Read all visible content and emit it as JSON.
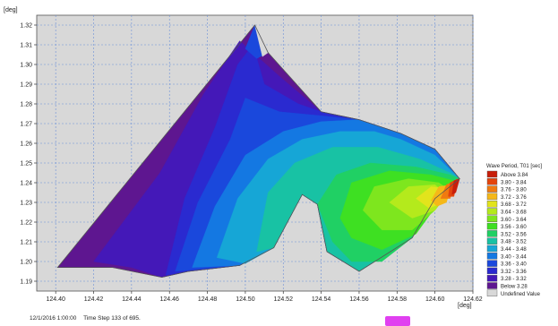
{
  "chart_data": {
    "type": "contour",
    "x_unit_label": "[deg]",
    "y_unit_label": "[deg]",
    "xlim": [
      124.39,
      124.62
    ],
    "ylim": [
      1.185,
      1.325
    ],
    "x_ticks": [
      "124.40",
      "124.42",
      "124.44",
      "124.46",
      "124.48",
      "124.50",
      "124.52",
      "124.54",
      "124.56",
      "124.58",
      "124.60",
      "124.62"
    ],
    "y_ticks": [
      "1.19",
      "1.20",
      "1.21",
      "1.22",
      "1.23",
      "1.24",
      "1.25",
      "1.26",
      "1.27",
      "1.28",
      "1.29",
      "1.30",
      "1.31",
      "1.32"
    ],
    "grid": true,
    "legend_position": "right",
    "legend": {
      "title": "Wave Period, T01 [sec]",
      "entries": [
        {
          "label": "Above 3.84",
          "color": "#c81e0a"
        },
        {
          "label": "3.80 - 3.84",
          "color": "#e4440c"
        },
        {
          "label": "3.76 - 3.80",
          "color": "#f07a10"
        },
        {
          "label": "3.72 - 3.76",
          "color": "#f5b818"
        },
        {
          "label": "3.68 - 3.72",
          "color": "#e2e41c"
        },
        {
          "label": "3.64 - 3.68",
          "color": "#b4ea1c"
        },
        {
          "label": "3.60 - 3.64",
          "color": "#7ee61e"
        },
        {
          "label": "3.56 - 3.60",
          "color": "#3ee022"
        },
        {
          "label": "3.52 - 3.56",
          "color": "#20d064"
        },
        {
          "label": "3.48 - 3.52",
          "color": "#18c2a4"
        },
        {
          "label": "3.44 - 3.48",
          "color": "#16a6d6"
        },
        {
          "label": "3.40 - 3.44",
          "color": "#1478e2"
        },
        {
          "label": "3.36 - 3.40",
          "color": "#1a48dc"
        },
        {
          "label": "3.32 - 3.36",
          "color": "#2a2ad0"
        },
        {
          "label": "3.28 - 3.32",
          "color": "#4418b8"
        },
        {
          "label": "Below 3.28",
          "color": "#5e1690"
        },
        {
          "label": "Undefined Value",
          "color": "#d8d8d8"
        }
      ]
    },
    "domain_outline": [
      [
        124.401,
        1.197
      ],
      [
        124.505,
        1.32
      ],
      [
        124.512,
        1.306
      ],
      [
        124.54,
        1.276
      ],
      [
        124.56,
        1.272
      ],
      [
        124.582,
        1.265
      ],
      [
        124.6,
        1.257
      ],
      [
        124.613,
        1.242
      ],
      [
        124.6,
        1.232
      ],
      [
        124.588,
        1.212
      ],
      [
        124.56,
        1.195
      ],
      [
        124.543,
        1.205
      ],
      [
        124.538,
        1.229
      ],
      [
        124.53,
        1.234
      ],
      [
        124.515,
        1.207
      ],
      [
        124.497,
        1.198
      ],
      [
        124.47,
        1.195
      ],
      [
        124.456,
        1.192
      ],
      [
        124.43,
        1.197
      ]
    ],
    "bands": [
      {
        "level": "Below 3.28",
        "region": [
          [
            124.401,
            1.197
          ],
          [
            124.505,
            1.32
          ],
          [
            124.512,
            1.306
          ],
          [
            124.54,
            1.276
          ],
          [
            124.56,
            1.272
          ],
          [
            124.582,
            1.265
          ],
          [
            124.6,
            1.257
          ],
          [
            124.613,
            1.242
          ],
          [
            124.6,
            1.232
          ],
          [
            124.588,
            1.212
          ],
          [
            124.56,
            1.195
          ],
          [
            124.543,
            1.205
          ],
          [
            124.538,
            1.229
          ],
          [
            124.53,
            1.234
          ],
          [
            124.515,
            1.207
          ],
          [
            124.497,
            1.198
          ],
          [
            124.47,
            1.195
          ],
          [
            124.456,
            1.192
          ],
          [
            124.43,
            1.197
          ]
        ]
      },
      {
        "level": "3.28 - 3.32",
        "region": [
          [
            124.42,
            1.2
          ],
          [
            124.455,
            1.245
          ],
          [
            124.478,
            1.285
          ],
          [
            124.497,
            1.312
          ],
          [
            124.518,
            1.294
          ],
          [
            124.54,
            1.276
          ],
          [
            124.56,
            1.272
          ],
          [
            124.582,
            1.265
          ],
          [
            124.6,
            1.257
          ],
          [
            124.613,
            1.242
          ],
          [
            124.6,
            1.232
          ],
          [
            124.588,
            1.212
          ],
          [
            124.56,
            1.195
          ],
          [
            124.543,
            1.205
          ],
          [
            124.538,
            1.229
          ],
          [
            124.53,
            1.234
          ],
          [
            124.515,
            1.207
          ],
          [
            124.497,
            1.198
          ],
          [
            124.47,
            1.195
          ],
          [
            124.456,
            1.192
          ],
          [
            124.44,
            1.197
          ]
        ]
      },
      {
        "level": "3.32 - 3.36",
        "region": [
          [
            124.458,
            1.193
          ],
          [
            124.468,
            1.232
          ],
          [
            124.484,
            1.268
          ],
          [
            124.496,
            1.3
          ],
          [
            124.504,
            1.31
          ],
          [
            124.51,
            1.29
          ],
          [
            124.528,
            1.28
          ],
          [
            124.54,
            1.276
          ],
          [
            124.56,
            1.272
          ],
          [
            124.582,
            1.265
          ],
          [
            124.6,
            1.257
          ],
          [
            124.613,
            1.242
          ],
          [
            124.6,
            1.232
          ],
          [
            124.588,
            1.212
          ],
          [
            124.56,
            1.195
          ],
          [
            124.543,
            1.205
          ],
          [
            124.538,
            1.229
          ],
          [
            124.53,
            1.234
          ],
          [
            124.515,
            1.207
          ],
          [
            124.497,
            1.198
          ],
          [
            124.47,
            1.195
          ]
        ]
      },
      {
        "level": "3.36 - 3.40",
        "region": [
          [
            124.463,
            1.195
          ],
          [
            124.475,
            1.23
          ],
          [
            124.492,
            1.262
          ],
          [
            124.5,
            1.283
          ],
          [
            124.518,
            1.276
          ],
          [
            124.54,
            1.274
          ],
          [
            124.56,
            1.272
          ],
          [
            124.582,
            1.265
          ],
          [
            124.6,
            1.257
          ],
          [
            124.613,
            1.242
          ],
          [
            124.6,
            1.232
          ],
          [
            124.588,
            1.212
          ],
          [
            124.56,
            1.195
          ],
          [
            124.543,
            1.205
          ],
          [
            124.538,
            1.229
          ],
          [
            124.53,
            1.234
          ],
          [
            124.515,
            1.207
          ],
          [
            124.497,
            1.198
          ]
        ]
      },
      {
        "level": "3.40 - 3.44",
        "region": [
          [
            124.472,
            1.197
          ],
          [
            124.484,
            1.228
          ],
          [
            124.5,
            1.254
          ],
          [
            124.52,
            1.266
          ],
          [
            124.54,
            1.271
          ],
          [
            124.56,
            1.272
          ],
          [
            124.582,
            1.265
          ],
          [
            124.6,
            1.257
          ],
          [
            124.613,
            1.242
          ],
          [
            124.6,
            1.232
          ],
          [
            124.588,
            1.212
          ],
          [
            124.56,
            1.195
          ],
          [
            124.543,
            1.205
          ],
          [
            124.538,
            1.229
          ],
          [
            124.53,
            1.234
          ],
          [
            124.515,
            1.207
          ],
          [
            124.497,
            1.198
          ]
        ]
      },
      {
        "level": "3.44 - 3.48",
        "region": [
          [
            124.485,
            1.202
          ],
          [
            124.496,
            1.232
          ],
          [
            124.512,
            1.252
          ],
          [
            124.53,
            1.262
          ],
          [
            124.55,
            1.266
          ],
          [
            124.568,
            1.266
          ],
          [
            124.582,
            1.262
          ],
          [
            124.6,
            1.254
          ],
          [
            124.613,
            1.242
          ],
          [
            124.6,
            1.232
          ],
          [
            124.588,
            1.212
          ],
          [
            124.56,
            1.195
          ],
          [
            124.543,
            1.205
          ],
          [
            124.538,
            1.229
          ],
          [
            124.53,
            1.234
          ],
          [
            124.515,
            1.207
          ],
          [
            124.5,
            1.199
          ]
        ]
      },
      {
        "level": "3.48 - 3.52",
        "region": [
          [
            124.506,
            1.205
          ],
          [
            124.512,
            1.235
          ],
          [
            124.526,
            1.25
          ],
          [
            124.546,
            1.258
          ],
          [
            124.57,
            1.258
          ],
          [
            124.592,
            1.252
          ],
          [
            124.608,
            1.245
          ],
          [
            124.613,
            1.242
          ],
          [
            124.6,
            1.232
          ],
          [
            124.588,
            1.212
          ],
          [
            124.56,
            1.195
          ],
          [
            124.543,
            1.205
          ],
          [
            124.538,
            1.229
          ],
          [
            124.53,
            1.234
          ],
          [
            124.515,
            1.207
          ]
        ]
      },
      {
        "level": "3.52 - 3.56",
        "region": [
          [
            124.538,
            1.229
          ],
          [
            124.548,
            1.244
          ],
          [
            124.566,
            1.25
          ],
          [
            124.59,
            1.248
          ],
          [
            124.608,
            1.244
          ],
          [
            124.613,
            1.242
          ],
          [
            124.6,
            1.232
          ],
          [
            124.588,
            1.212
          ],
          [
            124.572,
            1.2
          ],
          [
            124.556,
            1.2
          ],
          [
            124.546,
            1.21
          ]
        ]
      },
      {
        "level": "3.56 - 3.60",
        "region": [
          [
            124.55,
            1.222
          ],
          [
            124.556,
            1.24
          ],
          [
            124.576,
            1.246
          ],
          [
            124.598,
            1.244
          ],
          [
            124.61,
            1.241
          ],
          [
            124.602,
            1.23
          ],
          [
            124.59,
            1.214
          ],
          [
            124.572,
            1.206
          ],
          [
            124.556,
            1.212
          ]
        ]
      },
      {
        "level": "3.60 - 3.64",
        "region": [
          [
            124.562,
            1.226
          ],
          [
            124.568,
            1.238
          ],
          [
            124.586,
            1.242
          ],
          [
            124.602,
            1.24
          ],
          [
            124.608,
            1.236
          ],
          [
            124.6,
            1.226
          ],
          [
            124.588,
            1.216
          ],
          [
            124.572,
            1.216
          ]
        ]
      },
      {
        "level": "3.64 - 3.68",
        "region": [
          [
            124.576,
            1.23
          ],
          [
            124.586,
            1.238
          ],
          [
            124.6,
            1.239
          ],
          [
            124.606,
            1.234
          ],
          [
            124.6,
            1.226
          ],
          [
            124.588,
            1.222
          ]
        ]
      },
      {
        "level": "3.68 - 3.72",
        "region": [
          [
            124.59,
            1.232
          ],
          [
            124.598,
            1.238
          ],
          [
            124.606,
            1.237
          ],
          [
            124.604,
            1.23
          ],
          [
            124.597,
            1.227
          ]
        ]
      },
      {
        "level": "3.72 - 3.76",
        "region": [
          [
            124.598,
            1.231
          ],
          [
            124.602,
            1.238
          ],
          [
            124.609,
            1.239
          ],
          [
            124.606,
            1.23
          ],
          [
            124.601,
            1.228
          ]
        ]
      },
      {
        "level": "3.76 - 3.80",
        "region": [
          [
            124.603,
            1.232
          ],
          [
            124.606,
            1.239
          ],
          [
            124.611,
            1.241
          ],
          [
            124.608,
            1.232
          ]
        ]
      },
      {
        "level": "3.80 - 3.84",
        "region": [
          [
            124.607,
            1.233
          ],
          [
            124.608,
            1.24
          ],
          [
            124.612,
            1.242
          ],
          [
            124.61,
            1.233
          ]
        ]
      },
      {
        "level": "Above 3.84",
        "region": [
          [
            124.609,
            1.234
          ],
          [
            124.61,
            1.241
          ],
          [
            124.613,
            1.242
          ],
          [
            124.611,
            1.235
          ]
        ]
      },
      {
        "level": "3.36 - 3.40",
        "region": [
          [
            124.5,
            1.308
          ],
          [
            124.505,
            1.32
          ],
          [
            124.512,
            1.306
          ],
          [
            124.506,
            1.303
          ]
        ]
      },
      {
        "level": "Undefined Value",
        "region": [
          [
            124.505,
            1.32
          ],
          [
            124.512,
            1.306
          ],
          [
            124.509,
            1.304
          ]
        ]
      }
    ]
  },
  "status_bar": {
    "date_time": "12/1/2016 1:00:00",
    "time_step": "Time Step 133 of 695."
  }
}
